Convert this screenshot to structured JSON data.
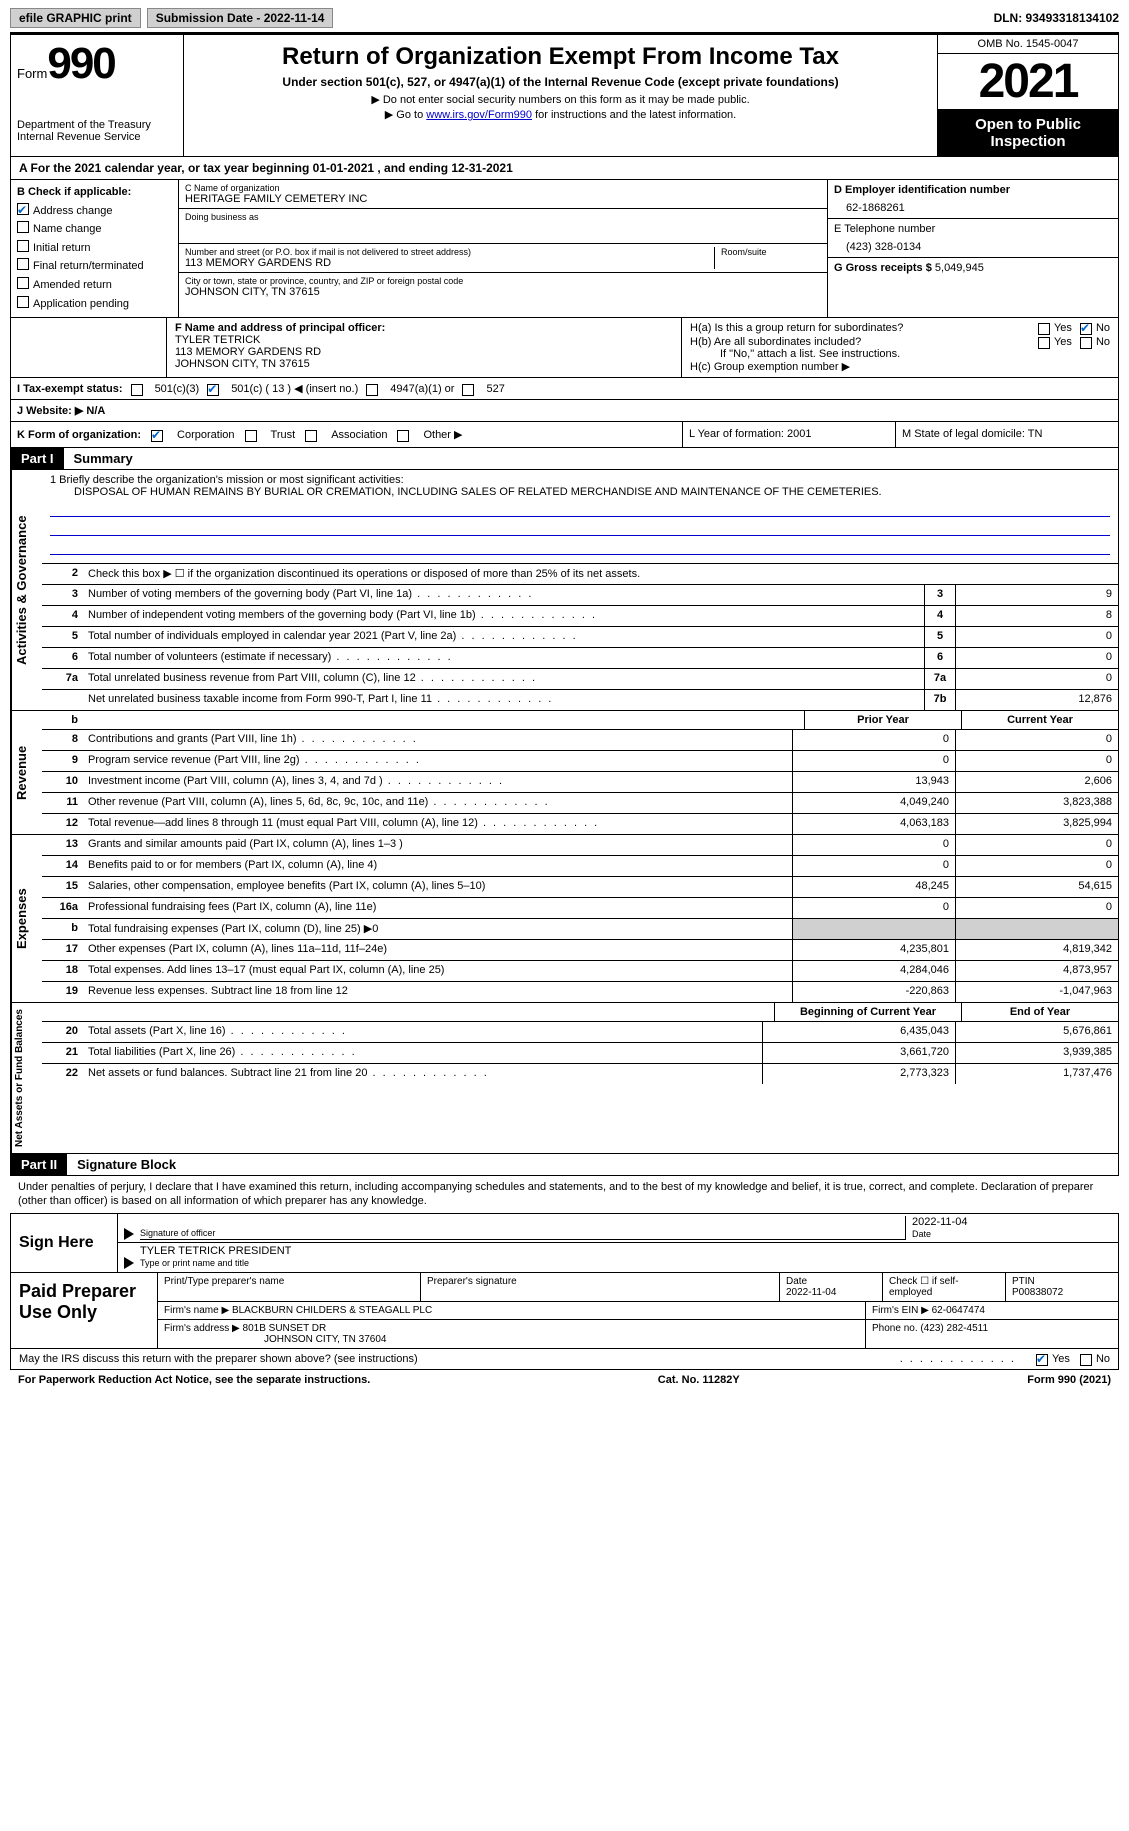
{
  "topbar": {
    "efile": "efile GRAPHIC print",
    "subdate_label": "Submission Date - 2022-11-14",
    "dln": "DLN: 93493318134102"
  },
  "header": {
    "form_word": "Form",
    "form_num": "990",
    "dept": "Department of the Treasury Internal Revenue Service",
    "title": "Return of Organization Exempt From Income Tax",
    "sub": "Under section 501(c), 527, or 4947(a)(1) of the Internal Revenue Code (except private foundations)",
    "note1": "▶ Do not enter social security numbers on this form as it may be made public.",
    "note2_pre": "▶ Go to ",
    "note2_link": "www.irs.gov/Form990",
    "note2_post": " for instructions and the latest information.",
    "omb": "OMB No. 1545-0047",
    "year": "2021",
    "open": "Open to Public Inspection"
  },
  "calyr": "A For the 2021 calendar year, or tax year beginning 01-01-2021   , and ending 12-31-2021",
  "sectB": {
    "check_label": "B Check if applicable:",
    "items": [
      "Address change",
      "Name change",
      "Initial return",
      "Final return/terminated",
      "Amended return",
      "Application pending"
    ],
    "checked": [
      true,
      false,
      false,
      false,
      false,
      false
    ],
    "c_label": "C Name of organization",
    "c_name": "HERITAGE FAMILY CEMETERY INC",
    "dba": "Doing business as",
    "addr_label": "Number and street (or P.O. box if mail is not delivered to street address)",
    "addr": "113 MEMORY GARDENS RD",
    "room": "Room/suite",
    "city_label": "City or town, state or province, country, and ZIP or foreign postal code",
    "city": "JOHNSON CITY, TN  37615",
    "d_label": "D Employer identification number",
    "d_val": "62-1868261",
    "e_label": "E Telephone number",
    "e_val": "(423) 328-0134",
    "g_label": "G Gross receipts $",
    "g_val": "5,049,945"
  },
  "officer": {
    "f_label": "F  Name and address of principal officer:",
    "name": "TYLER TETRICK",
    "addr1": "113 MEMORY GARDENS RD",
    "addr2": "JOHNSON CITY, TN  37615",
    "ha": "H(a)  Is this a group return for subordinates?",
    "hb": "H(b)  Are all subordinates included?",
    "hb_note": "If \"No,\" attach a list. See instructions.",
    "hc": "H(c)  Group exemption number ▶",
    "yes": "Yes",
    "no": "No"
  },
  "status": {
    "i": "I  Tax-exempt status:",
    "c3": "501(c)(3)",
    "c": "501(c) ( 13 ) ◀ (insert no.)",
    "a1": "4947(a)(1) or",
    "s527": "527",
    "j": "J  Website: ▶",
    "jval": "N/A",
    "k": "K Form of organization:",
    "corp": "Corporation",
    "trust": "Trust",
    "assoc": "Association",
    "other": "Other ▶",
    "l": "L Year of formation: 2001",
    "m": "M State of legal domicile: TN"
  },
  "part1": {
    "bar": "Part I",
    "title": "Summary",
    "mission_label": "1   Briefly describe the organization's mission or most significant activities:",
    "mission": "DISPOSAL OF HUMAN REMAINS BY BURIAL OR CREMATION, INCLUDING SALES OF RELATED MERCHANDISE AND MAINTENANCE OF THE CEMETERIES.",
    "line2": "Check this box ▶ ☐ if the organization discontinued its operations or disposed of more than 25% of its net assets.",
    "vlab_act": "Activities & Governance",
    "vlab_rev": "Revenue",
    "vlab_exp": "Expenses",
    "vlab_net": "Net Assets or Fund Balances",
    "prior": "Prior Year",
    "current": "Current Year",
    "begin": "Beginning of Current Year",
    "end": "End of Year",
    "rows_gov": [
      {
        "n": "3",
        "t": "Number of voting members of the governing body (Part VI, line 1a)",
        "b": "3",
        "v": "9"
      },
      {
        "n": "4",
        "t": "Number of independent voting members of the governing body (Part VI, line 1b)",
        "b": "4",
        "v": "8"
      },
      {
        "n": "5",
        "t": "Total number of individuals employed in calendar year 2021 (Part V, line 2a)",
        "b": "5",
        "v": "0"
      },
      {
        "n": "6",
        "t": "Total number of volunteers (estimate if necessary)",
        "b": "6",
        "v": "0"
      },
      {
        "n": "7a",
        "t": "Total unrelated business revenue from Part VIII, column (C), line 12",
        "b": "7a",
        "v": "0"
      },
      {
        "n": "",
        "t": "Net unrelated business taxable income from Form 990-T, Part I, line 11",
        "b": "7b",
        "v": "12,876"
      }
    ],
    "rows_rev": [
      {
        "n": "8",
        "t": "Contributions and grants (Part VIII, line 1h)",
        "p": "0",
        "c": "0"
      },
      {
        "n": "9",
        "t": "Program service revenue (Part VIII, line 2g)",
        "p": "0",
        "c": "0"
      },
      {
        "n": "10",
        "t": "Investment income (Part VIII, column (A), lines 3, 4, and 7d )",
        "p": "13,943",
        "c": "2,606"
      },
      {
        "n": "11",
        "t": "Other revenue (Part VIII, column (A), lines 5, 6d, 8c, 9c, 10c, and 11e)",
        "p": "4,049,240",
        "c": "3,823,388"
      },
      {
        "n": "12",
        "t": "Total revenue—add lines 8 through 11 (must equal Part VIII, column (A), line 12)",
        "p": "4,063,183",
        "c": "3,825,994"
      }
    ],
    "rows_exp": [
      {
        "n": "13",
        "t": "Grants and similar amounts paid (Part IX, column (A), lines 1–3 )",
        "p": "0",
        "c": "0"
      },
      {
        "n": "14",
        "t": "Benefits paid to or for members (Part IX, column (A), line 4)",
        "p": "0",
        "c": "0"
      },
      {
        "n": "15",
        "t": "Salaries, other compensation, employee benefits (Part IX, column (A), lines 5–10)",
        "p": "48,245",
        "c": "54,615"
      },
      {
        "n": "16a",
        "t": "Professional fundraising fees (Part IX, column (A), line 11e)",
        "p": "0",
        "c": "0"
      },
      {
        "n": "b",
        "t": "Total fundraising expenses (Part IX, column (D), line 25) ▶0",
        "p": "",
        "c": "",
        "shade": true
      },
      {
        "n": "17",
        "t": "Other expenses (Part IX, column (A), lines 11a–11d, 11f–24e)",
        "p": "4,235,801",
        "c": "4,819,342"
      },
      {
        "n": "18",
        "t": "Total expenses. Add lines 13–17 (must equal Part IX, column (A), line 25)",
        "p": "4,284,046",
        "c": "4,873,957"
      },
      {
        "n": "19",
        "t": "Revenue less expenses. Subtract line 18 from line 12",
        "p": "-220,863",
        "c": "-1,047,963"
      }
    ],
    "rows_net": [
      {
        "n": "20",
        "t": "Total assets (Part X, line 16)",
        "p": "6,435,043",
        "c": "5,676,861"
      },
      {
        "n": "21",
        "t": "Total liabilities (Part X, line 26)",
        "p": "3,661,720",
        "c": "3,939,385"
      },
      {
        "n": "22",
        "t": "Net assets or fund balances. Subtract line 21 from line 20",
        "p": "2,773,323",
        "c": "1,737,476"
      }
    ]
  },
  "part2": {
    "bar": "Part II",
    "title": "Signature Block",
    "decl": "Under penalties of perjury, I declare that I have examined this return, including accompanying schedules and statements, and to the best of my knowledge and belief, it is true, correct, and complete. Declaration of preparer (other than officer) is based on all information of which preparer has any knowledge.",
    "sign": "Sign Here",
    "sig_officer": "Signature of officer",
    "sig_date": "2022-11-04",
    "date_lbl": "Date",
    "officer_name": "TYLER TETRICK  PRESIDENT",
    "type_lbl": "Type or print name and title",
    "paid": "Paid Preparer Use Only",
    "prep_name_lbl": "Print/Type preparer's name",
    "prep_sig_lbl": "Preparer's signature",
    "prep_date_lbl": "Date",
    "prep_date": "2022-11-04",
    "self_lbl": "Check ☐ if self-employed",
    "ptin_lbl": "PTIN",
    "ptin": "P00838072",
    "firm_name_lbl": "Firm's name    ▶",
    "firm_name": "BLACKBURN CHILDERS & STEAGALL PLC",
    "firm_ein_lbl": "Firm's EIN ▶",
    "firm_ein": "62-0647474",
    "firm_addr_lbl": "Firm's address ▶",
    "firm_addr": "801B SUNSET DR",
    "firm_city": "JOHNSON CITY, TN  37604",
    "phone_lbl": "Phone no.",
    "phone": "(423) 282-4511",
    "discuss": "May the IRS discuss this return with the preparer shown above? (see instructions)"
  },
  "footer": {
    "left": "For Paperwork Reduction Act Notice, see the separate instructions.",
    "mid": "Cat. No. 11282Y",
    "right": "Form 990 (2021)"
  }
}
